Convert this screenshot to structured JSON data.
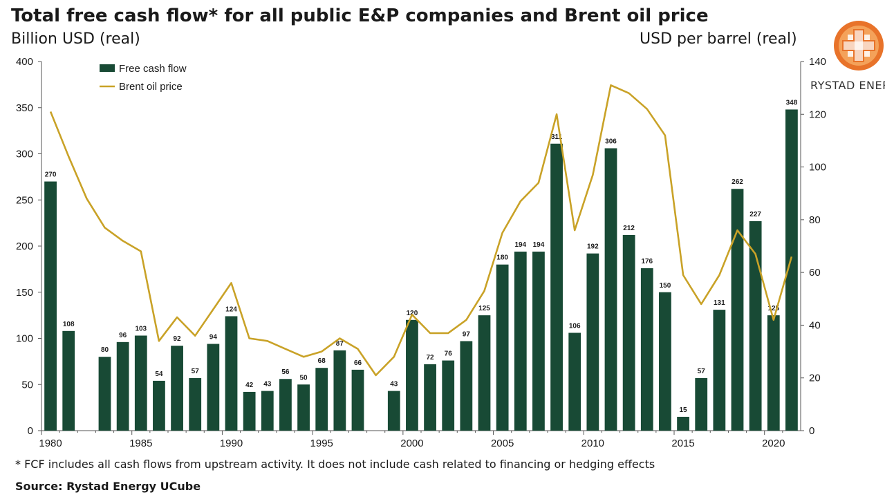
{
  "header": {
    "title": "Total free cash flow* for all public E&P companies and Brent oil price",
    "left_axis_unit": "Billion USD (real)",
    "right_axis_unit": "USD per barrel (real)"
  },
  "logo": {
    "text": "RYSTAD ENERGY"
  },
  "footer": {
    "footnote": "* FCF includes all cash flows from upstream activity. It does not include cash related to financing or hedging effects",
    "source": "Source: Rystad Energy UCube"
  },
  "colors": {
    "bar": "#184a35",
    "line": "#c9a227",
    "axis": "#555555"
  },
  "chart_data": {
    "type": "bar",
    "title": "Total free cash flow* for all public E&P companies and Brent oil price",
    "x": [
      1980,
      1981,
      1982,
      1983,
      1984,
      1985,
      1986,
      1987,
      1988,
      1989,
      1990,
      1991,
      1992,
      1993,
      1994,
      1995,
      1996,
      1997,
      1998,
      1999,
      2000,
      2001,
      2002,
      2003,
      2004,
      2005,
      2006,
      2007,
      2008,
      2009,
      2010,
      2011,
      2012,
      2013,
      2014,
      2015,
      2016,
      2017,
      2018,
      2019,
      2020,
      2021
    ],
    "x_tick_labels": [
      "1980",
      "1985",
      "1990",
      "1995",
      "2000",
      "2005",
      "2010",
      "2015",
      "2020"
    ],
    "ylabel": "Billion USD (real)",
    "y2label": "USD per barrel (real)",
    "ylim": [
      0,
      400
    ],
    "y2lim": [
      0,
      140
    ],
    "y_ticks": [
      0,
      50,
      100,
      150,
      200,
      250,
      300,
      350,
      400
    ],
    "y2_ticks": [
      0,
      20,
      40,
      60,
      80,
      100,
      120,
      140
    ],
    "legend": {
      "position": "top-left",
      "entries": [
        "Free cash flow",
        "Brent oil price"
      ]
    },
    "series": [
      {
        "name": "Free cash flow",
        "type": "bar",
        "axis": "left",
        "values": [
          270,
          108,
          null,
          80,
          96,
          103,
          54,
          92,
          57,
          94,
          124,
          42,
          43,
          56,
          50,
          68,
          87,
          66,
          null,
          43,
          120,
          72,
          76,
          97,
          125,
          180,
          194,
          194,
          311,
          106,
          192,
          306,
          212,
          176,
          150,
          15,
          57,
          131,
          262,
          227,
          125,
          348
        ],
        "labels": [
          "270",
          "108",
          "",
          "80",
          "96",
          "103",
          "54",
          "92",
          "57",
          "94",
          "124",
          "42",
          "43",
          "56",
          "50",
          "68",
          "87",
          "66",
          "",
          "43",
          "120",
          "72",
          "76",
          "97",
          "125",
          "180",
          "194",
          "194",
          "311",
          "106",
          "192",
          "306",
          "212",
          "176",
          "150",
          "15",
          "57",
          "131",
          "262",
          "227",
          "125",
          "348"
        ]
      },
      {
        "name": "Brent oil price",
        "type": "line",
        "axis": "right",
        "values": [
          121,
          104,
          88,
          77,
          72,
          68,
          34,
          43,
          36,
          46,
          56,
          35,
          34,
          31,
          28,
          30,
          35,
          31,
          21,
          28,
          44,
          37,
          37,
          42,
          53,
          75,
          87,
          94,
          120,
          76,
          97,
          131,
          128,
          122,
          112,
          59,
          48,
          59,
          76,
          67,
          42,
          66
        ]
      }
    ]
  }
}
